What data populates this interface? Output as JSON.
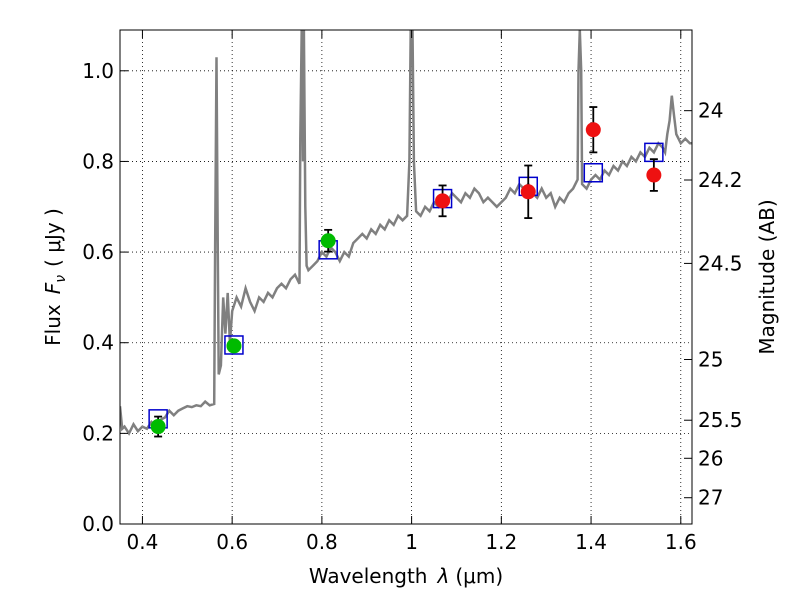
{
  "chart_data": {
    "type": "scatter",
    "xlabel_text": "Wavelength",
    "xlabel_symbol": "λ",
    "xlabel_unit": "(μm)",
    "ylabel_text": "Flux",
    "ylabel_symbol": "F",
    "ylabel_sub": "ν",
    "ylabel_unit": "( μJy )",
    "ylabel_right": "Magnitude (AB)",
    "xlim": [
      0.35,
      1.625
    ],
    "ylim": [
      0.0,
      1.09
    ],
    "x_ticks": [
      0.4,
      0.6,
      0.8,
      1.0,
      1.2,
      1.4,
      1.6
    ],
    "x_tick_labels": [
      "0.4",
      "0.6",
      "0.8",
      "1",
      "1.2",
      "1.4",
      "1.6"
    ],
    "y_ticks": [
      0.0,
      0.2,
      0.4,
      0.6,
      0.8,
      1.0
    ],
    "y_tick_labels": [
      "0.0",
      "0.2",
      "0.4",
      "0.6",
      "0.8",
      "1.0"
    ],
    "right_ticks": [
      {
        "label": "24",
        "flux": 0.912
      },
      {
        "label": "24.2",
        "flux": 0.759
      },
      {
        "label": "24.5",
        "flux": 0.575
      },
      {
        "label": "25",
        "flux": 0.363
      },
      {
        "label": "25.5",
        "flux": 0.229
      },
      {
        "label": "26",
        "flux": 0.145
      },
      {
        "label": "27",
        "flux": 0.058
      }
    ],
    "grid": true,
    "colors": {
      "spectrum": "#808080",
      "model": "#0000cc",
      "optical": "#00bb00",
      "nir": "#ee1111"
    },
    "spectrum": [
      [
        0.35,
        0.26
      ],
      [
        0.355,
        0.21
      ],
      [
        0.36,
        0.215
      ],
      [
        0.37,
        0.2
      ],
      [
        0.38,
        0.22
      ],
      [
        0.39,
        0.205
      ],
      [
        0.4,
        0.215
      ],
      [
        0.41,
        0.21
      ],
      [
        0.42,
        0.225
      ],
      [
        0.43,
        0.215
      ],
      [
        0.44,
        0.23
      ],
      [
        0.45,
        0.235
      ],
      [
        0.46,
        0.25
      ],
      [
        0.47,
        0.24
      ],
      [
        0.48,
        0.25
      ],
      [
        0.49,
        0.255
      ],
      [
        0.5,
        0.26
      ],
      [
        0.51,
        0.258
      ],
      [
        0.52,
        0.262
      ],
      [
        0.53,
        0.26
      ],
      [
        0.54,
        0.27
      ],
      [
        0.55,
        0.262
      ],
      [
        0.56,
        0.265
      ],
      [
        0.562,
        0.6
      ],
      [
        0.565,
        1.03
      ],
      [
        0.568,
        0.6
      ],
      [
        0.57,
        0.33
      ],
      [
        0.575,
        0.35
      ],
      [
        0.58,
        0.5
      ],
      [
        0.585,
        0.42
      ],
      [
        0.59,
        0.51
      ],
      [
        0.595,
        0.4
      ],
      [
        0.6,
        0.47
      ],
      [
        0.61,
        0.5
      ],
      [
        0.62,
        0.48
      ],
      [
        0.63,
        0.52
      ],
      [
        0.64,
        0.49
      ],
      [
        0.65,
        0.47
      ],
      [
        0.66,
        0.5
      ],
      [
        0.67,
        0.49
      ],
      [
        0.68,
        0.51
      ],
      [
        0.69,
        0.5
      ],
      [
        0.7,
        0.52
      ],
      [
        0.71,
        0.53
      ],
      [
        0.72,
        0.52
      ],
      [
        0.73,
        0.54
      ],
      [
        0.74,
        0.55
      ],
      [
        0.75,
        0.53
      ],
      [
        0.752,
        0.85
      ],
      [
        0.755,
        1.09
      ],
      [
        0.758,
        0.8
      ],
      [
        0.76,
        1.09
      ],
      [
        0.763,
        0.7
      ],
      [
        0.766,
        0.57
      ],
      [
        0.77,
        0.56
      ],
      [
        0.78,
        0.57
      ],
      [
        0.79,
        0.58
      ],
      [
        0.8,
        0.6
      ],
      [
        0.81,
        0.59
      ],
      [
        0.82,
        0.61
      ],
      [
        0.83,
        0.6
      ],
      [
        0.84,
        0.58
      ],
      [
        0.85,
        0.6
      ],
      [
        0.86,
        0.59
      ],
      [
        0.87,
        0.62
      ],
      [
        0.88,
        0.63
      ],
      [
        0.89,
        0.64
      ],
      [
        0.9,
        0.63
      ],
      [
        0.91,
        0.65
      ],
      [
        0.92,
        0.64
      ],
      [
        0.93,
        0.66
      ],
      [
        0.94,
        0.65
      ],
      [
        0.95,
        0.67
      ],
      [
        0.96,
        0.66
      ],
      [
        0.97,
        0.68
      ],
      [
        0.98,
        0.67
      ],
      [
        0.99,
        0.68
      ],
      [
        0.995,
        0.8
      ],
      [
        0.998,
        1.09
      ],
      [
        1.002,
        1.09
      ],
      [
        1.005,
        0.8
      ],
      [
        1.01,
        0.69
      ],
      [
        1.02,
        0.68
      ],
      [
        1.03,
        0.7
      ],
      [
        1.04,
        0.69
      ],
      [
        1.05,
        0.71
      ],
      [
        1.06,
        0.7
      ],
      [
        1.07,
        0.72
      ],
      [
        1.08,
        0.71
      ],
      [
        1.09,
        0.73
      ],
      [
        1.1,
        0.72
      ],
      [
        1.11,
        0.71
      ],
      [
        1.12,
        0.73
      ],
      [
        1.13,
        0.72
      ],
      [
        1.14,
        0.74
      ],
      [
        1.15,
        0.73
      ],
      [
        1.16,
        0.71
      ],
      [
        1.17,
        0.72
      ],
      [
        1.18,
        0.71
      ],
      [
        1.19,
        0.7
      ],
      [
        1.2,
        0.71
      ],
      [
        1.21,
        0.72
      ],
      [
        1.22,
        0.74
      ],
      [
        1.23,
        0.73
      ],
      [
        1.24,
        0.75
      ],
      [
        1.25,
        0.74
      ],
      [
        1.26,
        0.75
      ],
      [
        1.27,
        0.73
      ],
      [
        1.28,
        0.72
      ],
      [
        1.29,
        0.74
      ],
      [
        1.3,
        0.72
      ],
      [
        1.31,
        0.73
      ],
      [
        1.32,
        0.7
      ],
      [
        1.33,
        0.72
      ],
      [
        1.34,
        0.71
      ],
      [
        1.35,
        0.73
      ],
      [
        1.36,
        0.74
      ],
      [
        1.37,
        0.76
      ],
      [
        1.372,
        1.0
      ],
      [
        1.375,
        1.09
      ],
      [
        1.378,
        1.0
      ],
      [
        1.38,
        0.75
      ],
      [
        1.39,
        0.74
      ],
      [
        1.4,
        0.76
      ],
      [
        1.41,
        0.77
      ],
      [
        1.42,
        0.76
      ],
      [
        1.43,
        0.78
      ],
      [
        1.44,
        0.77
      ],
      [
        1.45,
        0.79
      ],
      [
        1.46,
        0.78
      ],
      [
        1.47,
        0.8
      ],
      [
        1.48,
        0.79
      ],
      [
        1.49,
        0.81
      ],
      [
        1.5,
        0.8
      ],
      [
        1.51,
        0.82
      ],
      [
        1.52,
        0.81
      ],
      [
        1.53,
        0.83
      ],
      [
        1.54,
        0.82
      ],
      [
        1.55,
        0.84
      ],
      [
        1.56,
        0.83
      ],
      [
        1.565,
        0.82
      ],
      [
        1.57,
        0.86
      ],
      [
        1.575,
        0.89
      ],
      [
        1.58,
        0.945
      ],
      [
        1.585,
        0.9
      ],
      [
        1.59,
        0.86
      ],
      [
        1.6,
        0.84
      ],
      [
        1.61,
        0.85
      ],
      [
        1.62,
        0.84
      ],
      [
        1.625,
        0.84
      ]
    ],
    "model_points": [
      {
        "x": 0.435,
        "y": 0.232
      },
      {
        "x": 0.604,
        "y": 0.395
      },
      {
        "x": 0.814,
        "y": 0.605
      },
      {
        "x": 1.069,
        "y": 0.718
      },
      {
        "x": 1.26,
        "y": 0.745
      },
      {
        "x": 1.405,
        "y": 0.775
      },
      {
        "x": 1.54,
        "y": 0.82
      }
    ],
    "optical_points": [
      {
        "x": 0.435,
        "y": 0.215,
        "err": 0.022
      },
      {
        "x": 0.604,
        "y": 0.393,
        "err": 0.01
      },
      {
        "x": 0.814,
        "y": 0.625,
        "err": 0.024
      }
    ],
    "nir_points": [
      {
        "x": 1.069,
        "y": 0.713,
        "err": 0.034
      },
      {
        "x": 1.26,
        "y": 0.733,
        "err": 0.058
      },
      {
        "x": 1.405,
        "y": 0.87,
        "err": 0.05
      },
      {
        "x": 1.54,
        "y": 0.77,
        "err": 0.035
      }
    ]
  }
}
